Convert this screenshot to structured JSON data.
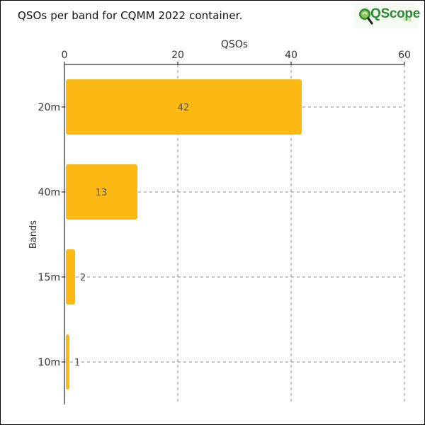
{
  "title": "QSOs per band for CQMM 2022 container.",
  "logo": {
    "text": "QScope",
    "tld": ".org"
  },
  "chart_data": {
    "type": "bar",
    "orientation": "horizontal",
    "categories": [
      "20m",
      "40m",
      "15m",
      "10m"
    ],
    "values": [
      42,
      13,
      2,
      1
    ],
    "data_labels": [
      "42",
      "13",
      "2",
      "1"
    ],
    "xlabel": "QSOs",
    "ylabel": "Bands",
    "xlim": [
      0,
      60
    ],
    "xticks": [
      0,
      20,
      40,
      60
    ],
    "x_axis_position": "top",
    "grid": true,
    "legend": "none",
    "bar_color": "#fdb913",
    "label_color": "#555555",
    "grid_color": "#888888"
  }
}
